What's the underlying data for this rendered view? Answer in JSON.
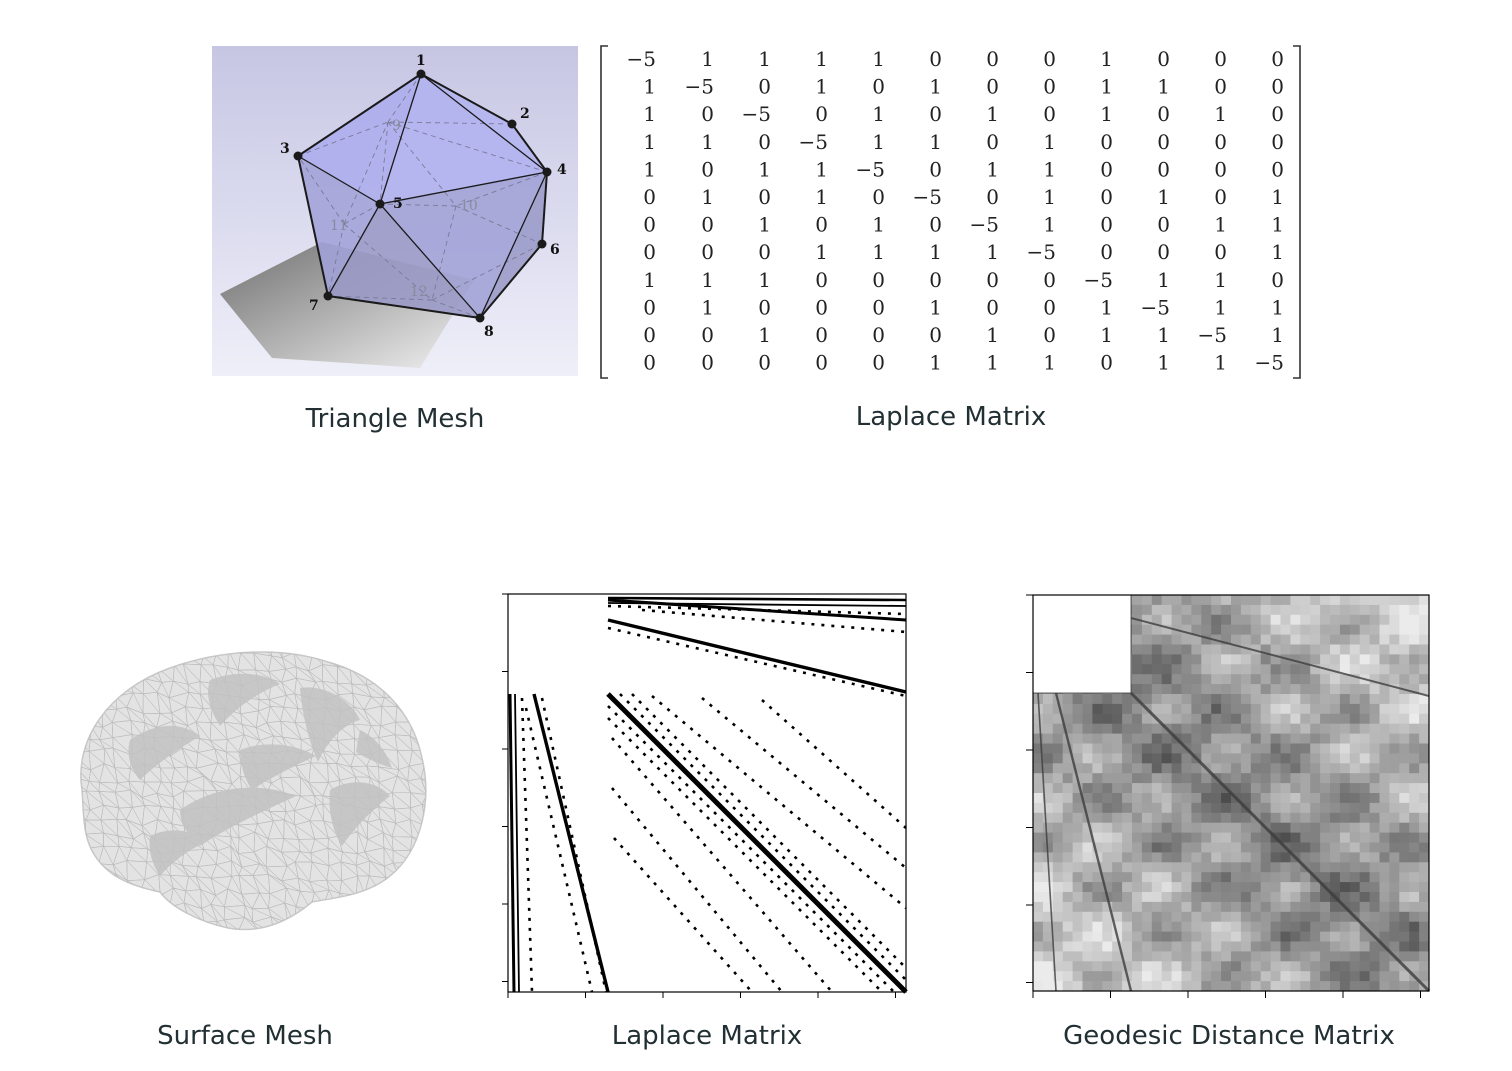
{
  "captions": {
    "triangle_mesh": "Triangle Mesh",
    "laplace_small": "Laplace Matrix",
    "surface_mesh": "Surface Mesh",
    "laplace_sparse": "Laplace Matrix",
    "geodesic": "Geodesic Distance Matrix"
  },
  "mesh": {
    "visible_vertex_labels": [
      "1",
      "2",
      "3",
      "4",
      "5",
      "6",
      "7",
      "8"
    ],
    "hidden_vertex_labels": [
      "9",
      "10",
      "11",
      "12"
    ],
    "colors": {
      "background_top": "#c9c9e6",
      "background_bottom": "#eeeef8",
      "face": "#a9a9ee",
      "shadow": "#8e8e8e"
    }
  },
  "laplace_matrix": {
    "rows": [
      [
        "−5",
        "1",
        "1",
        "1",
        "1",
        "0",
        "0",
        "0",
        "1",
        "0",
        "0",
        "0"
      ],
      [
        "1",
        "−5",
        "0",
        "1",
        "0",
        "1",
        "0",
        "0",
        "1",
        "1",
        "0",
        "0"
      ],
      [
        "1",
        "0",
        "−5",
        "0",
        "1",
        "0",
        "1",
        "0",
        "1",
        "0",
        "1",
        "0"
      ],
      [
        "1",
        "1",
        "0",
        "−5",
        "1",
        "1",
        "0",
        "1",
        "0",
        "0",
        "0",
        "0"
      ],
      [
        "1",
        "0",
        "1",
        "1",
        "−5",
        "0",
        "1",
        "1",
        "0",
        "0",
        "0",
        "0"
      ],
      [
        "0",
        "1",
        "0",
        "1",
        "0",
        "−5",
        "0",
        "1",
        "0",
        "1",
        "0",
        "1"
      ],
      [
        "0",
        "0",
        "1",
        "0",
        "1",
        "0",
        "−5",
        "1",
        "0",
        "0",
        "1",
        "1"
      ],
      [
        "0",
        "0",
        "0",
        "1",
        "1",
        "1",
        "1",
        "−5",
        "0",
        "0",
        "0",
        "1"
      ],
      [
        "1",
        "1",
        "1",
        "0",
        "0",
        "0",
        "0",
        "0",
        "−5",
        "1",
        "1",
        "0"
      ],
      [
        "0",
        "1",
        "0",
        "0",
        "0",
        "1",
        "0",
        "0",
        "1",
        "−5",
        "1",
        "1"
      ],
      [
        "0",
        "0",
        "1",
        "0",
        "0",
        "0",
        "1",
        "0",
        "1",
        "1",
        "−5",
        "1"
      ],
      [
        "0",
        "0",
        "0",
        "0",
        "0",
        "1",
        "1",
        "1",
        "0",
        "1",
        "1",
        "−5"
      ]
    ]
  },
  "surface_mesh": {
    "icon": "brain-mesh-icon",
    "colors": {
      "fill": "#e2e2e2",
      "wire": "#bdbdbd",
      "fold": "#bcbcbc"
    }
  },
  "sparse_matrix": {
    "icon": "sparsity-pattern-icon",
    "colors": {
      "dot": "#000000",
      "frame": "#000000"
    }
  },
  "geodesic_matrix": {
    "icon": "distance-heatmap-icon",
    "colors": {
      "dark": "#4a4a4a",
      "light": "#e8e8e8"
    }
  }
}
